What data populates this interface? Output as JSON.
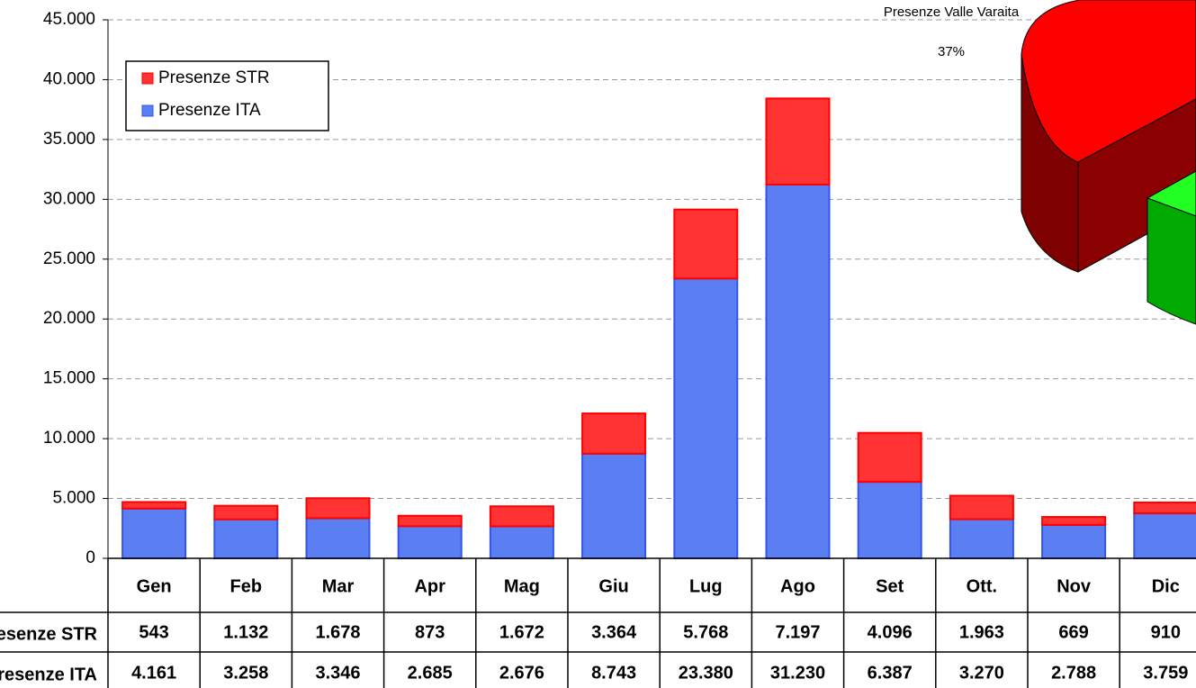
{
  "chart_data": [
    {
      "type": "bar",
      "stacked": true,
      "categories": [
        "Gen",
        "Feb",
        "Mar",
        "Apr",
        "Mag",
        "Giu",
        "Lug",
        "Ago",
        "Set",
        "Ott.",
        "Nov",
        "Dic"
      ],
      "series": [
        {
          "name": "Presenze STR",
          "color": "#ff3333",
          "values": [
            543,
            1132,
            1678,
            873,
            1672,
            3364,
            5768,
            7197,
            4096,
            1963,
            669,
            910
          ],
          "value_labels": [
            "543",
            "1.132",
            "1.678",
            "873",
            "1.672",
            "3.364",
            "5.768",
            "7.197",
            "4.096",
            "1.963",
            "669",
            "910"
          ]
        },
        {
          "name": "Presenze ITA",
          "color": "#5b7ff2",
          "values": [
            4161,
            3258,
            3346,
            2685,
            2676,
            8743,
            23380,
            31230,
            6387,
            3270,
            2788,
            3759
          ],
          "value_labels": [
            "4.161",
            "3.258",
            "3.346",
            "2.685",
            "2.676",
            "8.743",
            "23.380",
            "31.230",
            "6.387",
            "3.270",
            "2.788",
            "3.759"
          ]
        }
      ],
      "ylim": [
        0,
        45000
      ],
      "yticks": [
        0,
        {
          "value": 5000,
          "label": "5.000"
        },
        {
          "value": 10000,
          "label": "10.000"
        },
        {
          "value": 15000,
          "label": "15.000"
        },
        {
          "value": 20000,
          "label": "20.000"
        },
        {
          "value": 25000,
          "label": "25.000"
        },
        {
          "value": 30000,
          "label": "30.000"
        },
        {
          "value": 35000,
          "label": "35.000"
        },
        {
          "value": 40000,
          "label": "40.000"
        },
        {
          "value": 45000,
          "label": "45.000"
        }
      ],
      "grid": true,
      "legend": "top-left"
    },
    {
      "type": "pie",
      "labels": [
        "Presenze Valle Varaita"
      ],
      "values": [
        37
      ],
      "value_labels": [
        "37%"
      ],
      "colors": [
        "#ff0000"
      ]
    }
  ]
}
